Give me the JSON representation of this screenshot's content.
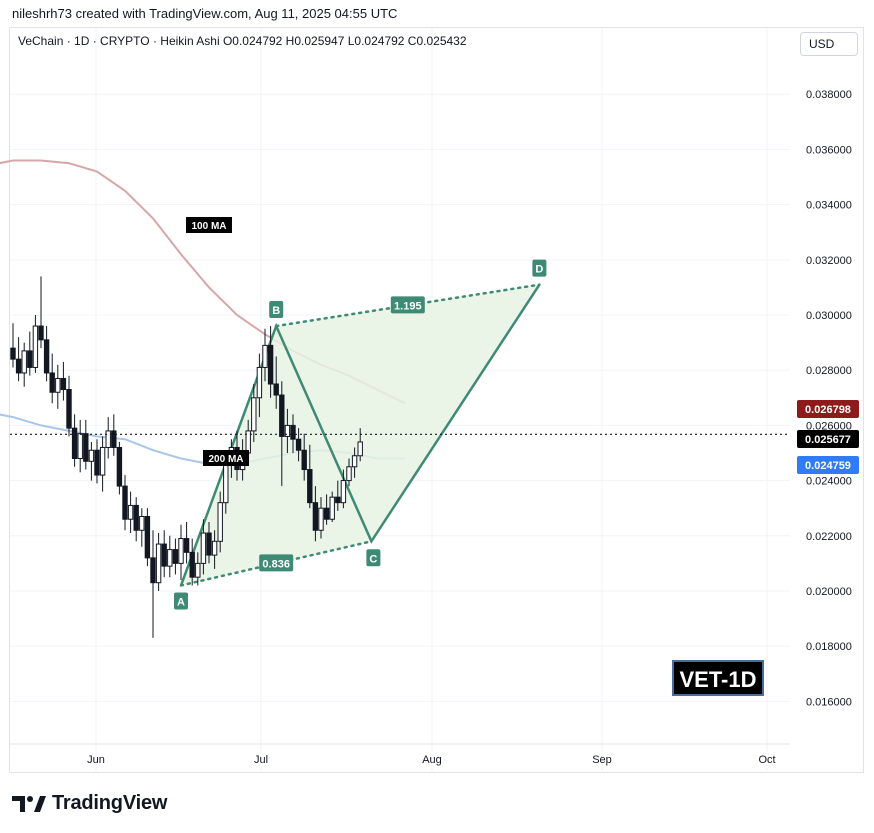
{
  "header": {
    "attribution": "nileshrh73 created with TradingView.com, Aug 11, 2025 04:55 UTC"
  },
  "legend": {
    "text": "VeChain · 1D · CRYPTO · Heikin Ashi  O0.024792  H0.025947  L0.024792  C0.025432"
  },
  "currency": "USD",
  "badge": "VET-1D",
  "footer": {
    "brand": "TradingView"
  },
  "colors": {
    "bull": "#089981",
    "bear": "#131722",
    "ma100": "#d6a7a7",
    "ma200": "#a9c6ea",
    "pattern": "#3f8a74",
    "pattern_fill": "#e6f3e3",
    "last_price_bg": "#000000",
    "ma100_label_bg": "#8e1b1b",
    "ma200_label_bg": "#2f7cf6"
  },
  "chart_data": {
    "type": "candlestick",
    "symbol": "VeChain",
    "interval": "1D",
    "y_axis": {
      "ticks": [
        "0.038000",
        "0.036000",
        "0.034000",
        "0.032000",
        "0.030000",
        "0.028000",
        "0.026000",
        "0.024000",
        "0.022000",
        "0.020000",
        "0.018000",
        "0.016000"
      ],
      "ylim": [
        0.0146,
        0.0404
      ]
    },
    "x_axis": {
      "ticks": [
        "Jun",
        "Jul",
        "Aug",
        "Sep",
        "Oct"
      ]
    },
    "price_labels": {
      "ma100": "0.026798",
      "last": "0.025677",
      "ma200": "0.024759"
    },
    "last_price": 0.025677,
    "moving_averages": [
      {
        "name": "100 MA",
        "label": "100 MA",
        "points": [
          [
            -10,
            0.0352
          ],
          [
            -5,
            0.0354
          ],
          [
            0,
            0.0356
          ],
          [
            5,
            0.0356
          ],
          [
            10,
            0.0355
          ],
          [
            15,
            0.0352
          ],
          [
            20,
            0.0345
          ],
          [
            25,
            0.0335
          ],
          [
            30,
            0.0322
          ],
          [
            35,
            0.031
          ],
          [
            40,
            0.03
          ],
          [
            45,
            0.0293
          ],
          [
            50,
            0.0287
          ],
          [
            55,
            0.0282
          ],
          [
            60,
            0.0278
          ],
          [
            65,
            0.0273
          ],
          [
            70,
            0.0268
          ]
        ]
      },
      {
        "name": "200 MA",
        "label": "200 MA",
        "points": [
          [
            -10,
            0.0267
          ],
          [
            -5,
            0.0265
          ],
          [
            0,
            0.0263
          ],
          [
            5,
            0.026
          ],
          [
            10,
            0.0258
          ],
          [
            15,
            0.0256
          ],
          [
            20,
            0.0255
          ],
          [
            25,
            0.0251
          ],
          [
            30,
            0.0248
          ],
          [
            35,
            0.0246
          ],
          [
            40,
            0.0246
          ],
          [
            45,
            0.0248
          ],
          [
            50,
            0.025
          ],
          [
            55,
            0.0251
          ],
          [
            60,
            0.025
          ],
          [
            65,
            0.0248
          ],
          [
            70,
            0.0248
          ]
        ]
      }
    ],
    "harmonic_pattern": {
      "points": [
        {
          "label": "A",
          "x": 30,
          "y": 0.0202
        },
        {
          "label": "B",
          "x": 47,
          "y": 0.0296
        },
        {
          "label": "C",
          "x": 64,
          "y": 0.0218
        },
        {
          "label": "D",
          "x": 94,
          "y": 0.0311
        }
      ],
      "ratios": [
        {
          "label": "0.836",
          "between": [
            "A",
            "C"
          ]
        },
        {
          "label": "1.195",
          "between": [
            "B",
            "D"
          ]
        }
      ]
    },
    "candles": [
      [
        0.0288,
        0.0297,
        0.0281,
        0.0284
      ],
      [
        0.0284,
        0.0292,
        0.0276,
        0.0279
      ],
      [
        0.0279,
        0.029,
        0.0274,
        0.0287
      ],
      [
        0.0287,
        0.0294,
        0.0278,
        0.0281
      ],
      [
        0.0281,
        0.03,
        0.0279,
        0.0296
      ],
      [
        0.0296,
        0.0314,
        0.0288,
        0.0291
      ],
      [
        0.0291,
        0.0296,
        0.0276,
        0.0279
      ],
      [
        0.0279,
        0.0286,
        0.0268,
        0.0272
      ],
      [
        0.0272,
        0.0282,
        0.0266,
        0.0277
      ],
      [
        0.0277,
        0.0283,
        0.0269,
        0.0273
      ],
      [
        0.0273,
        0.0278,
        0.0256,
        0.0259
      ],
      [
        0.0259,
        0.0264,
        0.0245,
        0.0248
      ],
      [
        0.0248,
        0.0262,
        0.0243,
        0.0257
      ],
      [
        0.0257,
        0.0262,
        0.0244,
        0.0247
      ],
      [
        0.0247,
        0.0254,
        0.024,
        0.0251
      ],
      [
        0.0251,
        0.0255,
        0.0239,
        0.0242
      ],
      [
        0.0242,
        0.0256,
        0.0236,
        0.0252
      ],
      [
        0.0252,
        0.0263,
        0.0248,
        0.0258
      ],
      [
        0.0258,
        0.0264,
        0.0249,
        0.0252
      ],
      [
        0.0252,
        0.0254,
        0.0235,
        0.0238
      ],
      [
        0.0238,
        0.0242,
        0.0222,
        0.0226
      ],
      [
        0.0226,
        0.0236,
        0.0221,
        0.0231
      ],
      [
        0.0231,
        0.0234,
        0.0218,
        0.0222
      ],
      [
        0.0222,
        0.023,
        0.0216,
        0.0227
      ],
      [
        0.0227,
        0.023,
        0.0209,
        0.0212
      ],
      [
        0.0212,
        0.0222,
        0.0183,
        0.0203
      ],
      [
        0.0203,
        0.0221,
        0.02,
        0.0217
      ],
      [
        0.0217,
        0.0222,
        0.0205,
        0.0209
      ],
      [
        0.0209,
        0.022,
        0.0205,
        0.0215
      ],
      [
        0.0215,
        0.0219,
        0.0206,
        0.021
      ],
      [
        0.021,
        0.0224,
        0.0204,
        0.0219
      ],
      [
        0.0219,
        0.0225,
        0.021,
        0.0214
      ],
      [
        0.0214,
        0.0219,
        0.0202,
        0.0205
      ],
      [
        0.0205,
        0.0214,
        0.0202,
        0.021
      ],
      [
        0.021,
        0.0226,
        0.0206,
        0.0221
      ],
      [
        0.0221,
        0.0225,
        0.021,
        0.0213
      ],
      [
        0.0213,
        0.0222,
        0.0208,
        0.0218
      ],
      [
        0.0218,
        0.0236,
        0.0214,
        0.0232
      ],
      [
        0.0232,
        0.025,
        0.0228,
        0.0246
      ],
      [
        0.0246,
        0.0255,
        0.0241,
        0.0252
      ],
      [
        0.0252,
        0.0258,
        0.024,
        0.0244
      ],
      [
        0.0244,
        0.0255,
        0.024,
        0.025
      ],
      [
        0.025,
        0.0262,
        0.0246,
        0.0258
      ],
      [
        0.0258,
        0.0275,
        0.0254,
        0.027
      ],
      [
        0.027,
        0.0286,
        0.0263,
        0.0281
      ],
      [
        0.0281,
        0.0295,
        0.0276,
        0.0289
      ],
      [
        0.0289,
        0.0296,
        0.027,
        0.0275
      ],
      [
        0.0275,
        0.0285,
        0.0266,
        0.0271
      ],
      [
        0.0271,
        0.0276,
        0.0238,
        0.0256
      ],
      [
        0.0256,
        0.0266,
        0.025,
        0.026
      ],
      [
        0.026,
        0.0264,
        0.025,
        0.0255
      ],
      [
        0.0255,
        0.0259,
        0.0247,
        0.0251
      ],
      [
        0.0251,
        0.0257,
        0.024,
        0.0244
      ],
      [
        0.0244,
        0.0253,
        0.023,
        0.0232
      ],
      [
        0.0232,
        0.0238,
        0.0218,
        0.0222
      ],
      [
        0.0222,
        0.0234,
        0.0219,
        0.023
      ],
      [
        0.023,
        0.0235,
        0.0224,
        0.0226
      ],
      [
        0.0226,
        0.0236,
        0.0225,
        0.0234
      ],
      [
        0.0234,
        0.024,
        0.0229,
        0.0232
      ],
      [
        0.0232,
        0.0244,
        0.023,
        0.024
      ],
      [
        0.024,
        0.0248,
        0.0238,
        0.0245
      ],
      [
        0.0245,
        0.0252,
        0.0241,
        0.0249
      ],
      [
        0.0249,
        0.0259,
        0.0247,
        0.0254
      ]
    ]
  }
}
